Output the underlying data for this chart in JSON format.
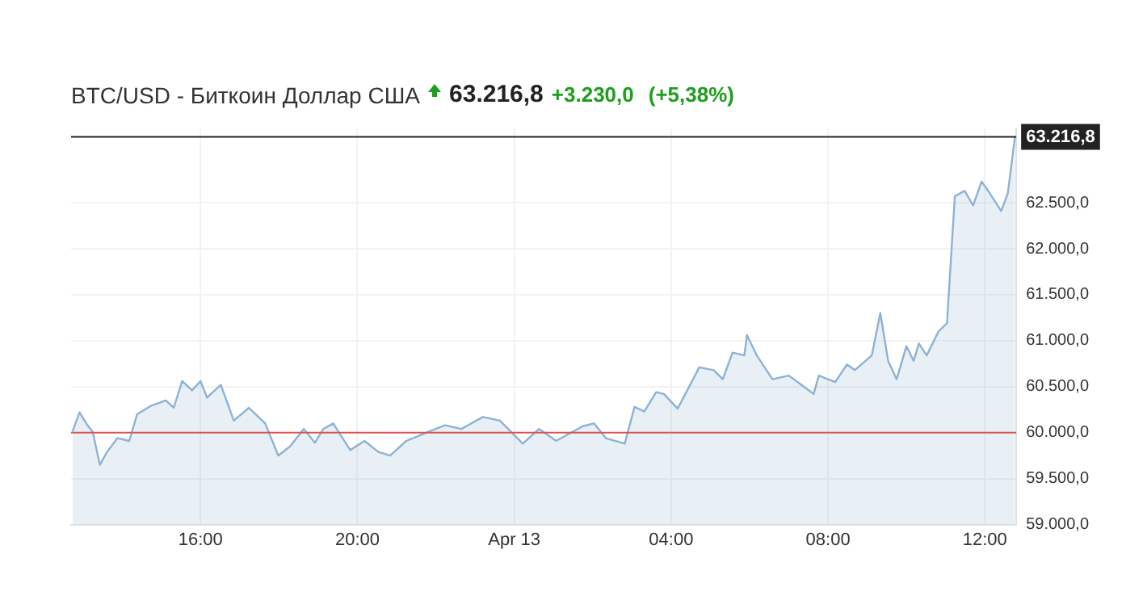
{
  "chart_data": {
    "type": "area",
    "title": "BTC/USD - Биткоин Доллар США",
    "annotations": [
      "63.216,8",
      "+3.230,0",
      "(+5,38%)"
    ],
    "x": [
      "--04-12T12:44",
      "--04-12T12:55",
      "--04-12T13:07",
      "--04-12T13:15",
      "--04-12T13:26",
      "--04-12T13:37",
      "--04-12T13:53",
      "--04-12T14:11",
      "--04-12T14:23",
      "--04-12T14:44",
      "--04-12T15:07",
      "--04-12T15:19",
      "--04-12T15:32",
      "--04-12T15:47",
      "--04-12T16:00",
      "--04-12T16:10",
      "--04-12T16:31",
      "--04-12T16:51",
      "--04-12T17:14",
      "--04-12T17:39",
      "--04-12T17:59",
      "--04-12T18:17",
      "--04-12T18:38",
      "--04-12T18:55",
      "--04-12T19:08",
      "--04-12T19:23",
      "--04-12T19:49",
      "--04-12T20:11",
      "--04-12T20:32",
      "--04-12T20:50",
      "--04-12T21:15",
      "--04-12T21:49",
      "--04-12T22:14",
      "--04-12T22:39",
      "--04-12T23:12",
      "--04-12T23:38",
      "--04-13T00:13",
      "--04-13T00:38",
      "--04-13T01:04",
      "--04-13T01:45",
      "--04-13T02:02",
      "--04-13T02:20",
      "--04-13T02:49",
      "--04-13T03:04",
      "--04-13T03:19",
      "--04-13T03:37",
      "--04-13T03:49",
      "--04-13T04:10",
      "--04-13T04:43",
      "--04-13T05:05",
      "--04-13T05:19",
      "--04-13T05:34",
      "--04-13T05:52",
      "--04-13T05:56",
      "--04-13T06:11",
      "--04-13T06:35",
      "--04-13T07:00",
      "--04-13T07:25",
      "--04-13T07:38",
      "--04-13T07:46",
      "--04-13T08:11",
      "--04-13T08:29",
      "--04-13T08:41",
      "--04-13T09:07",
      "--04-13T09:20",
      "--04-13T09:32",
      "--04-13T09:45",
      "--04-13T10:00",
      "--04-13T10:11",
      "--04-13T10:19",
      "--04-13T10:31",
      "--04-13T10:49",
      "--04-13T11:02",
      "--04-13T11:14",
      "--04-13T11:29",
      "--04-13T11:42",
      "--04-13T11:55",
      "--04-13T12:05",
      "--04-13T12:25",
      "--04-13T12:35",
      "--04-13T12:46"
    ],
    "series": [
      {
        "color": "#8db2d4",
        "values": [
          60010,
          60220,
          60080,
          60010,
          59650,
          59790,
          59940,
          59910,
          60200,
          60290,
          60350,
          60270,
          60560,
          60460,
          60560,
          60380,
          60520,
          60130,
          60270,
          60100,
          59750,
          59850,
          60040,
          59890,
          60040,
          60100,
          59810,
          59910,
          59790,
          59750,
          59910,
          60010,
          60080,
          60040,
          60170,
          60130,
          59880,
          60040,
          59910,
          60070,
          60100,
          59940,
          59880,
          60280,
          60230,
          60440,
          60420,
          60260,
          60710,
          60680,
          60580,
          60870,
          60840,
          61060,
          60840,
          60580,
          60620,
          60490,
          60420,
          60620,
          60550,
          60740,
          60680,
          60840,
          61300,
          60780,
          60580,
          60940,
          60780,
          60970,
          60840,
          61100,
          61190,
          62570,
          62630,
          62470,
          62730,
          62630,
          62410,
          62600,
          63216.8
        ]
      }
    ],
    "xlim": [
      "--04-12T12:42",
      "--04-13T12:48"
    ],
    "xticks": [
      {
        "value": "--04-12T16:00",
        "label": "16:00"
      },
      {
        "value": "--04-12T20:00",
        "label": "20:00"
      },
      {
        "value": "--04-13T00:00",
        "label": "Apr 13"
      },
      {
        "value": "--04-13T04:00",
        "label": "04:00"
      },
      {
        "value": "--04-13T08:00",
        "label": "08:00"
      },
      {
        "value": "--04-13T12:00",
        "label": "12:00"
      }
    ],
    "ylim": [
      59000,
      63300
    ],
    "yticks": [
      {
        "value": 59000,
        "label": "59.000,0"
      },
      {
        "value": 59500,
        "label": "59.500,0"
      },
      {
        "value": 60000,
        "label": "60.000,0"
      },
      {
        "value": 60500,
        "label": "60.500,0"
      },
      {
        "value": 61000,
        "label": "61.000,0"
      },
      {
        "value": 61500,
        "label": "61.500,0"
      },
      {
        "value": 62000,
        "label": "62.000,0"
      },
      {
        "value": 62500,
        "label": "62.500,0"
      }
    ],
    "ref_lines": [
      {
        "axis": "y",
        "value": 60000,
        "color": "#d9534f"
      },
      {
        "axis": "y",
        "value": 63216.8,
        "label": "63.216,8",
        "color": "#222222"
      }
    ],
    "grid": true,
    "legend": false,
    "marker": "none",
    "line_style": "solid"
  }
}
